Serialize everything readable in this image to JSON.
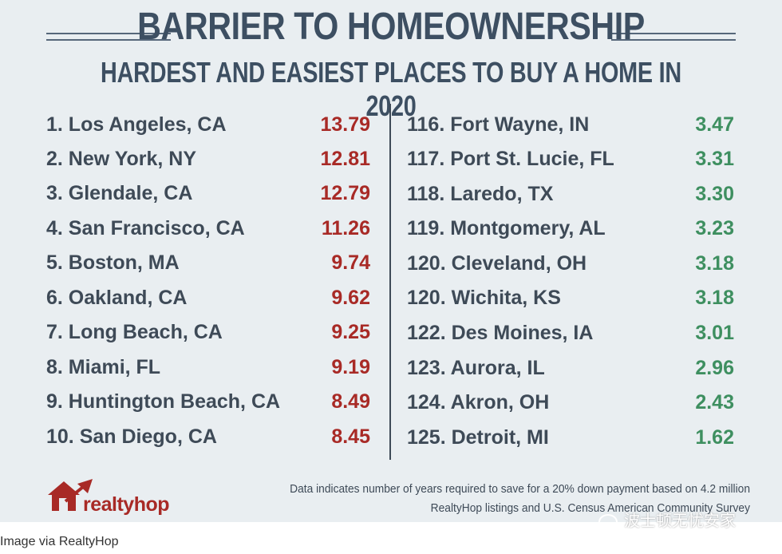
{
  "title": "BARRIER TO HOMEOWNERSHIP",
  "subtitle": "HARDEST AND EASIEST PLACES TO BUY A HOME IN 2020",
  "hardest": [
    {
      "label": "1. Los Angeles, CA",
      "value": "13.79"
    },
    {
      "label": "2. New York, NY",
      "value": "12.81"
    },
    {
      "label": "3. Glendale, CA",
      "value": "12.79"
    },
    {
      "label": "4. San Francisco, CA",
      "value": "11.26"
    },
    {
      "label": "5. Boston, MA",
      "value": "9.74"
    },
    {
      "label": "6. Oakland, CA",
      "value": "9.62"
    },
    {
      "label": "7. Long Beach, CA",
      "value": "9.25"
    },
    {
      "label": "8. Miami, FL",
      "value": "9.19"
    },
    {
      "label": "9. Huntington Beach, CA",
      "value": "8.49"
    },
    {
      "label": "10. San Diego, CA",
      "value": "8.45"
    }
  ],
  "easiest": [
    {
      "label": "116. Fort Wayne, IN",
      "value": "3.47"
    },
    {
      "label": "117. Port St. Lucie, FL",
      "value": "3.31"
    },
    {
      "label": "118. Laredo, TX",
      "value": "3.30"
    },
    {
      "label": "119. Montgomery, AL",
      "value": "3.23"
    },
    {
      "label": "120. Cleveland, OH",
      "value": "3.18"
    },
    {
      "label": "120. Wichita, KS",
      "value": "3.18"
    },
    {
      "label": "122. Des Moines, IA",
      "value": "3.01"
    },
    {
      "label": "123. Aurora, IL",
      "value": "2.96"
    },
    {
      "label": "124. Akron, OH",
      "value": "2.43"
    },
    {
      "label": "125. Detroit, MI",
      "value": "1.62"
    }
  ],
  "logo_text": "realtyhop",
  "note_line1": "Data indicates number of years required to save for a 20% down payment based on 4.2 million",
  "note_line2": "RealtyHop listings and U.S. Census American Community Survey",
  "watermark": "波士顿无忧安家",
  "caption": "Image via RealtyHop",
  "colors": {
    "hardest": "#a82a26",
    "easiest": "#3e8f60",
    "text": "#3e4a57",
    "background": "#e9eef1"
  },
  "icons": [
    "house-logo-icon",
    "arrow-up-icon",
    "wechat-icon"
  ]
}
